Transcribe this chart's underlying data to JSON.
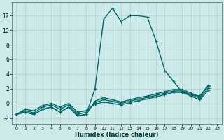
{
  "xlabel": "Humidex (Indice chaleur)",
  "xlim": [
    -0.5,
    23.5
  ],
  "ylim": [
    -2.8,
    13.8
  ],
  "xticks": [
    0,
    1,
    2,
    3,
    4,
    5,
    6,
    7,
    8,
    9,
    10,
    11,
    12,
    13,
    14,
    15,
    16,
    17,
    18,
    19,
    20,
    21,
    22,
    23
  ],
  "yticks": [
    -2,
    0,
    2,
    4,
    6,
    8,
    10,
    12
  ],
  "background_color": "#cceaea",
  "line_color": "#006666",
  "grid_color": "#bbcccc",
  "lines": [
    {
      "x": [
        0,
        1,
        2,
        3,
        4,
        5,
        6,
        7,
        8,
        9,
        10,
        11,
        12,
        13,
        14,
        15,
        16,
        17,
        18,
        19,
        20,
        21,
        22
      ],
      "y": [
        -1.5,
        -1.2,
        -1.5,
        -0.8,
        -0.5,
        -1.2,
        -0.5,
        -1.7,
        -1.5,
        2.0,
        11.5,
        13.0,
        11.2,
        12.0,
        12.0,
        11.8,
        8.5,
        4.5,
        3.0,
        1.5,
        1.2,
        1.0,
        2.5
      ]
    },
    {
      "x": [
        0,
        1,
        2,
        3,
        4,
        5,
        6,
        7,
        8,
        9,
        10,
        11,
        12,
        13,
        14,
        15,
        16,
        17,
        18,
        19,
        20,
        21,
        22
      ],
      "y": [
        -1.5,
        -1.2,
        -1.5,
        -0.8,
        -0.5,
        -1.2,
        -0.5,
        -1.7,
        -1.5,
        0.3,
        0.8,
        0.5,
        0.2,
        0.5,
        0.8,
        1.0,
        1.3,
        1.6,
        1.9,
        1.9,
        1.4,
        0.9,
        2.4
      ]
    },
    {
      "x": [
        0,
        1,
        2,
        3,
        4,
        5,
        6,
        7,
        8,
        9,
        10,
        11,
        12,
        13,
        14,
        15,
        16,
        17,
        18,
        19,
        20,
        21,
        22
      ],
      "y": [
        -1.5,
        -1.0,
        -1.3,
        -0.5,
        -0.2,
        -0.8,
        -0.2,
        -1.5,
        -1.2,
        0.1,
        0.5,
        0.3,
        0.0,
        0.3,
        0.6,
        0.8,
        1.1,
        1.4,
        1.7,
        1.7,
        1.2,
        0.7,
        2.1
      ]
    },
    {
      "x": [
        0,
        1,
        2,
        3,
        4,
        5,
        6,
        7,
        8,
        9,
        10,
        11,
        12,
        13,
        14,
        15,
        16,
        17,
        18,
        19,
        20,
        21,
        22
      ],
      "y": [
        -1.5,
        -0.8,
        -1.0,
        -0.3,
        0.0,
        -0.5,
        0.0,
        -1.2,
        -1.0,
        -0.1,
        0.2,
        0.0,
        -0.2,
        0.1,
        0.4,
        0.6,
        0.9,
        1.2,
        1.5,
        1.5,
        1.0,
        0.5,
        1.8
      ]
    }
  ]
}
